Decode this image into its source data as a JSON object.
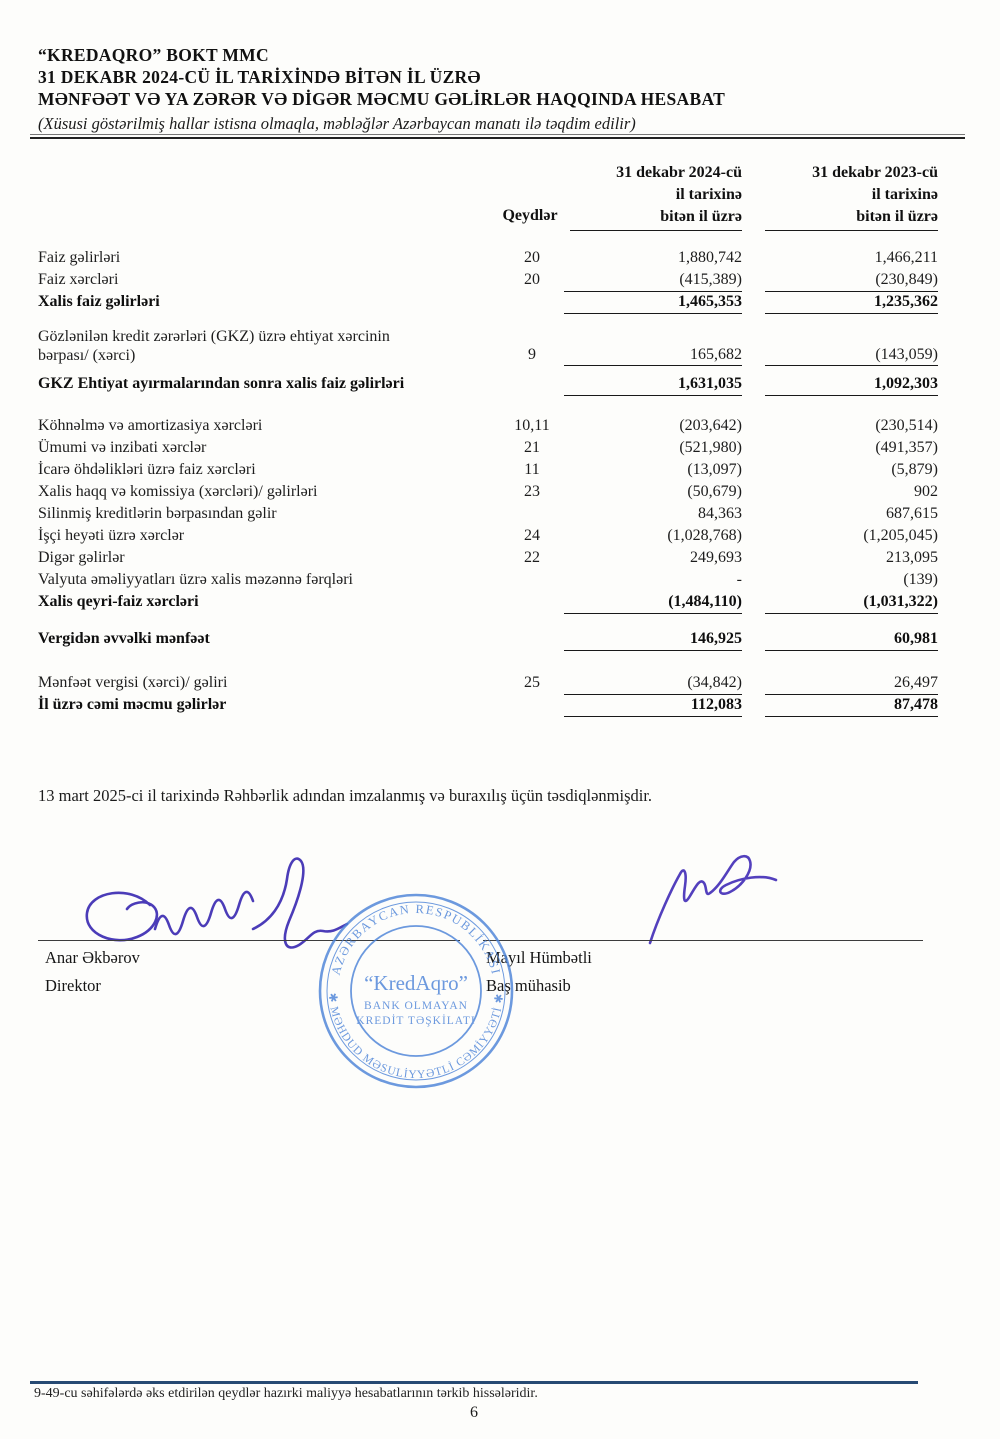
{
  "header": {
    "title_line1": "“KREDAQRO” BOKT MMC",
    "title_line2": "31 DEKABR 2024-CÜ İL TARİXİNDƏ BİTƏN İL ÜZRƏ",
    "title_line3": "MƏNFƏƏT VƏ YA ZƏRƏR VƏ DİGƏR MƏCMU GƏLİRLƏR HAQQINDA HESABAT",
    "subtitle": "(Xüsusi göstərilmiş hallar istisna olmaqla, məbləğlər Azərbaycan manatı ilə təqdim edilir)"
  },
  "table": {
    "note_header": "Qeydlər",
    "col2024": [
      "31 dekabr 2024-cü",
      "il tarixinə",
      "bitən il üzrə"
    ],
    "col2023": [
      "31 dekabr 2023-cü",
      "il tarixinə",
      "bitən il üzrə"
    ],
    "rows": [
      {
        "label": "Faiz gəlirləri",
        "note": "20",
        "v2024": "1,880,742",
        "v2023": "1,466,211"
      },
      {
        "label": "Faiz xərcləri",
        "note": "20",
        "v2024": "(415,389)",
        "v2023": "(230,849)",
        "rule": true
      },
      {
        "label": "Xalis faiz gəlirləri",
        "bold": true,
        "v2024": "1,465,353",
        "v2023": "1,235,362",
        "rule": true
      },
      {
        "label": "Gözlənilən kredit zərərləri (GKZ) üzrə ehtiyat xərcinin",
        "label2": "bərpası/ (xərci)",
        "note": "9",
        "v2024": "165,682",
        "v2023": "(143,059)",
        "rule": true,
        "gap": "a",
        "tall": true
      },
      {
        "label": "GKZ Ehtiyat ayırmalarından sonra xalis faiz gəlirləri",
        "bold": true,
        "v2024": "1,631,035",
        "v2023": "1,092,303",
        "rule": true,
        "tall2": true
      },
      {
        "label": "Köhnəlmə və amortizasiya xərcləri",
        "note": "10,11",
        "v2024": "(203,642)",
        "v2023": "(230,514)",
        "gap": "b"
      },
      {
        "label": "Ümumi və inzibati xərclər",
        "note": "21",
        "v2024": "(521,980)",
        "v2023": "(491,357)"
      },
      {
        "label": "İcarə öhdəlikləri üzrə faiz xərcləri",
        "note": "11",
        "v2024": "(13,097)",
        "v2023": "(5,879)"
      },
      {
        "label": "Xalis haqq və komissiya (xərcləri)/ gəlirləri",
        "note": "23",
        "v2024": "(50,679)",
        "v2023": "902"
      },
      {
        "label": "Silinmiş kreditlərin bərpasından gəlir",
        "v2024": "84,363",
        "v2023": "687,615"
      },
      {
        "label": "İşçi heyəti üzrə xərclər",
        "note": "24",
        "v2024": "(1,028,768)",
        "v2023": "(1,205,045)"
      },
      {
        "label": "Digər gəlirlər",
        "note": "22",
        "v2024": "249,693",
        "v2023": "213,095"
      },
      {
        "label": "Valyuta əməliyyatları üzrə xalis məzənnə fərqləri",
        "v2024": "-",
        "v2023": "(139)"
      },
      {
        "label": "Xalis qeyri-faiz xərcləri",
        "bold": true,
        "v2024": "(1,484,110)",
        "v2023": "(1,031,322)",
        "rule": true
      },
      {
        "label": "Vergidən əvvəlki mənfəət",
        "bold": true,
        "v2024": "146,925",
        "v2023": "60,981",
        "rule": true,
        "gap": "c"
      },
      {
        "label": "Mənfəət vergisi (xərci)/ gəliri",
        "note": "25",
        "v2024": "(34,842)",
        "v2023": "26,497",
        "rule": true,
        "gap": "d"
      },
      {
        "label": "İl üzrə cəmi məcmu gəlirlər",
        "bold": true,
        "v2024": "112,083",
        "v2023": "87,478",
        "rule": true
      }
    ]
  },
  "approval_note": "13 mart 2025-ci il tarixində Rəhbərlik adından imzalanmış və buraxılış üçün təsdiqlənmişdir.",
  "signatories": {
    "left": {
      "name": "Anar Əkbərov",
      "title": "Direktor"
    },
    "right": {
      "name": "Mayıl Hümbətli",
      "title": "Baş mühasib"
    }
  },
  "stamp": {
    "top_arc": "AZƏRBAYCAN RESPUBLİKASI",
    "bottom_arc": "✱ MƏHDUD MƏSULİYYƏTLİ CƏMİYYƏTİ ✱",
    "name": "“KredAqro”",
    "line2": "BANK OLMAYAN",
    "line3": "KREDİT TƏŞKİLATI",
    "color": "#4d84d8"
  },
  "ink_color": "#4b3cb8",
  "footer": {
    "note": "9-49-cu səhifələrdə əks etdirilən qeydlər hazırki maliyyə hesabatlarının tərkib hissələridir.",
    "page_number": "6"
  }
}
